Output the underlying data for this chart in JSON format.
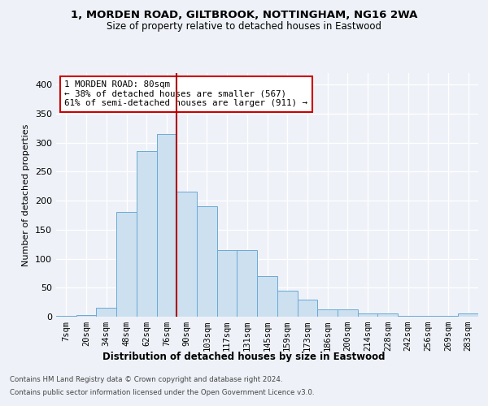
{
  "title_line1": "1, MORDEN ROAD, GILTBROOK, NOTTINGHAM, NG16 2WA",
  "title_line2": "Size of property relative to detached houses in Eastwood",
  "xlabel": "Distribution of detached houses by size in Eastwood",
  "ylabel": "Number of detached properties",
  "bar_labels": [
    "7sqm",
    "20sqm",
    "34sqm",
    "48sqm",
    "62sqm",
    "76sqm",
    "90sqm",
    "103sqm",
    "117sqm",
    "131sqm",
    "145sqm",
    "159sqm",
    "173sqm",
    "186sqm",
    "200sqm",
    "214sqm",
    "228sqm",
    "242sqm",
    "256sqm",
    "269sqm",
    "283sqm"
  ],
  "bar_values": [
    2,
    3,
    15,
    180,
    285,
    315,
    215,
    190,
    115,
    115,
    70,
    45,
    30,
    12,
    12,
    6,
    6,
    2,
    2,
    2,
    6
  ],
  "bar_color": "#cce0f0",
  "bar_edge_color": "#6aaad4",
  "vline_x": 5.5,
  "vline_color": "#aa0000",
  "annotation_text": "1 MORDEN ROAD: 80sqm\n← 38% of detached houses are smaller (567)\n61% of semi-detached houses are larger (911) →",
  "annotation_box_edge": "#cc0000",
  "annotation_box_fill": "white",
  "footnote1": "Contains HM Land Registry data © Crown copyright and database right 2024.",
  "footnote2": "Contains public sector information licensed under the Open Government Licence v3.0.",
  "ylim": [
    0,
    420
  ],
  "background_color": "#eef2f8"
}
